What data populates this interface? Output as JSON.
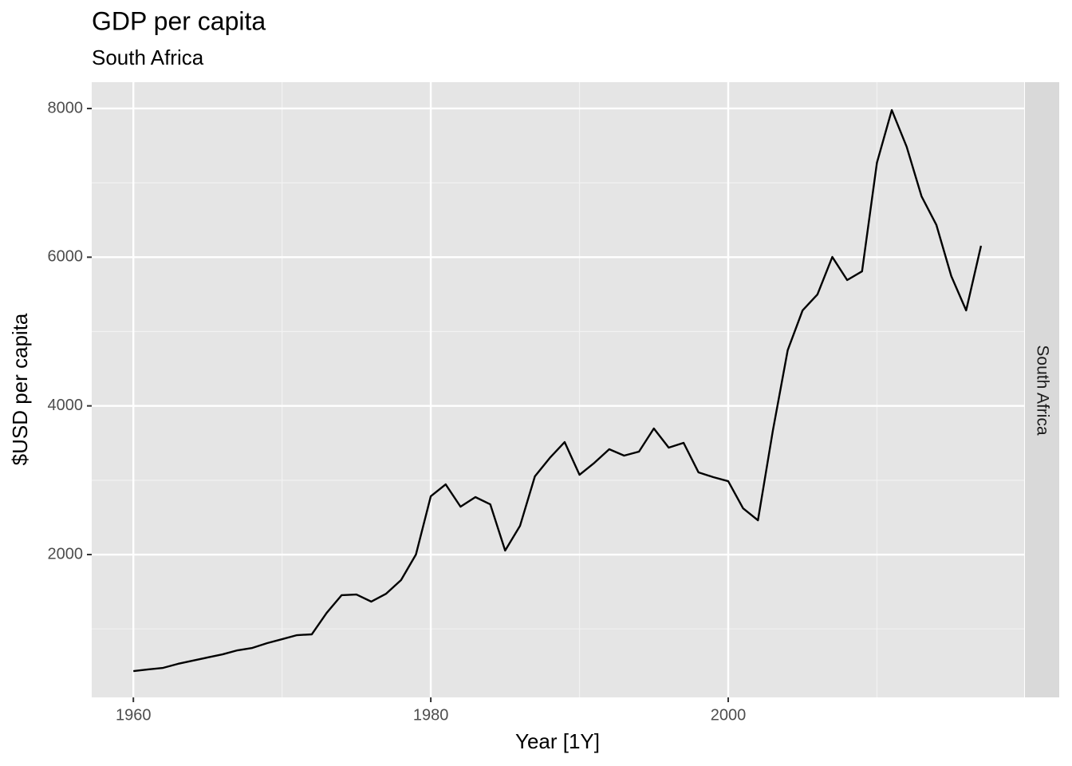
{
  "chart_data": {
    "type": "line",
    "title": "GDP per capita",
    "subtitle": "South Africa",
    "facet_label": "South Africa",
    "xlabel": "Year [1Y]",
    "ylabel": "$USD per capita",
    "x": [
      1960,
      1961,
      1962,
      1963,
      1964,
      1965,
      1966,
      1967,
      1968,
      1969,
      1970,
      1971,
      1972,
      1973,
      1974,
      1975,
      1976,
      1977,
      1978,
      1979,
      1980,
      1981,
      1982,
      1983,
      1984,
      1985,
      1986,
      1987,
      1988,
      1989,
      1990,
      1991,
      1992,
      1993,
      1994,
      1995,
      1996,
      1997,
      1998,
      1999,
      2000,
      2001,
      2002,
      2003,
      2004,
      2005,
      2006,
      2007,
      2008,
      2009,
      2010,
      2011,
      2012,
      2013,
      2014,
      2015,
      2016,
      2017
    ],
    "series": [
      {
        "name": "South Africa",
        "color": "#000000",
        "values": [
          433,
          455,
          476,
          530,
          573,
          616,
          658,
          712,
          744,
          809,
          862,
          916,
          927,
          1216,
          1453,
          1463,
          1367,
          1474,
          1657,
          2000,
          2784,
          2944,
          2644,
          2773,
          2676,
          2054,
          2386,
          3052,
          3299,
          3513,
          3073,
          3234,
          3417,
          3331,
          3385,
          3696,
          3438,
          3503,
          3106,
          3041,
          2987,
          2622,
          2461,
          3664,
          4748,
          5284,
          5499,
          6003,
          5692,
          5810,
          7270,
          7979,
          7485,
          6819,
          6433,
          5746,
          5284,
          6153
        ]
      }
    ],
    "xlim": [
      1957.2,
      2019.9
    ],
    "xticks": [
      1960,
      1980,
      2000
    ],
    "x_minor_grid": [
      1970,
      1990,
      2010
    ],
    "ylim": [
      79,
      8354
    ],
    "yticks": [
      2000,
      4000,
      6000,
      8000
    ],
    "y_minor_grid": [
      1000,
      3000,
      5000,
      7000
    ],
    "grid": true
  }
}
